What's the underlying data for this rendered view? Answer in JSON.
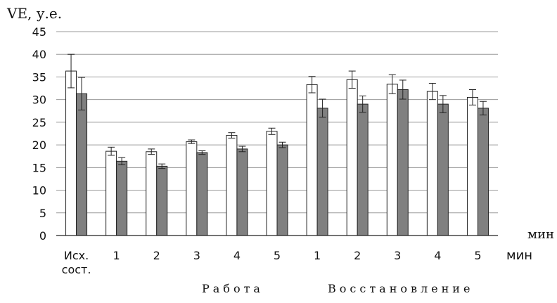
{
  "chart_data": {
    "type": "bar",
    "ylabel": "VE, у.е.",
    "ylim": [
      0,
      45
    ],
    "yticks": [
      "0",
      "5",
      "10",
      "15",
      "20",
      "25",
      "30",
      "35",
      "40",
      "45"
    ],
    "grid": true,
    "categories": [
      "Исх. сост.",
      "1",
      "2",
      "3",
      "4",
      "5",
      "1",
      "2",
      "3",
      "4",
      "5"
    ],
    "x_unit_top": "мин",
    "x_unit": "мин",
    "group_labels": {
      "work": "Работа",
      "recovery": "Восстановление"
    },
    "series": [
      {
        "color": "#ffffff",
        "values": [
          36.3,
          18.6,
          18.5,
          20.7,
          22.1,
          23.0,
          33.3,
          34.4,
          33.4,
          31.8,
          30.5
        ],
        "errors": [
          3.7,
          0.9,
          0.6,
          0.4,
          0.6,
          0.7,
          1.8,
          1.9,
          2.1,
          1.8,
          1.7
        ]
      },
      {
        "color": "#808080",
        "values": [
          31.3,
          16.4,
          15.3,
          18.3,
          19.1,
          20.0,
          28.1,
          29.0,
          32.2,
          29.0,
          28.1
        ],
        "errors": [
          3.6,
          0.8,
          0.5,
          0.4,
          0.6,
          0.6,
          2.0,
          1.8,
          2.1,
          1.9,
          1.5
        ]
      }
    ]
  }
}
